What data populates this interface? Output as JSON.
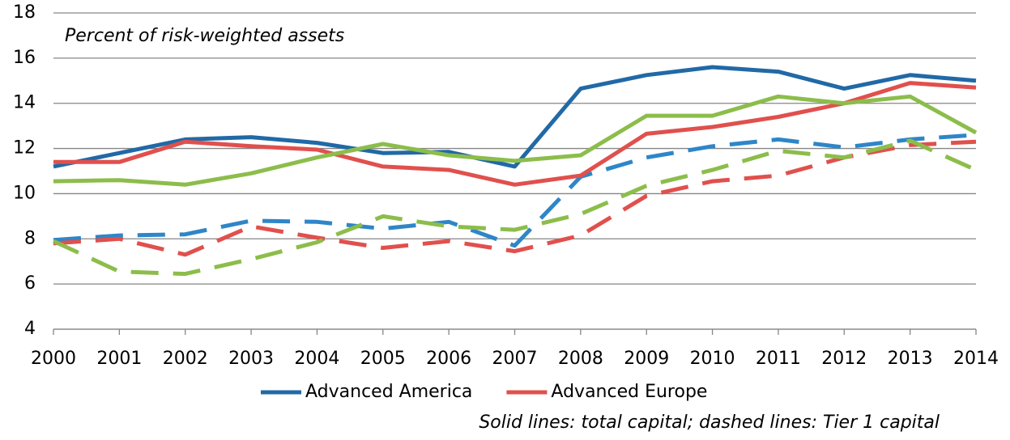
{
  "chart_data": {
    "type": "line",
    "x": [
      2000,
      2001,
      2002,
      2003,
      2004,
      2005,
      2006,
      2007,
      2008,
      2009,
      2010,
      2011,
      2012,
      2013,
      2014
    ],
    "xlim": [
      2000,
      2014
    ],
    "xticks": [
      2000,
      2001,
      2002,
      2003,
      2004,
      2005,
      2006,
      2007,
      2008,
      2009,
      2010,
      2011,
      2012,
      2013,
      2014
    ],
    "ylim": [
      4,
      18
    ],
    "yticks": [
      4,
      6,
      8,
      10,
      12,
      14,
      16,
      18
    ],
    "grid": true,
    "legend": "bottom",
    "annotations": [
      "Percent of risk-weighted assets",
      "Solid lines: total capital; dashed lines: Tier 1 capital"
    ],
    "series": [
      {
        "name": "Advanced America",
        "color": "#2169a6",
        "dashed": false,
        "values": [
          11.2,
          11.8,
          12.4,
          12.5,
          12.25,
          11.8,
          11.85,
          11.2,
          14.65,
          15.25,
          15.6,
          15.4,
          14.65,
          15.25,
          15.0
        ]
      },
      {
        "name": "Advanced Europe",
        "color": "#e0504d",
        "dashed": false,
        "values": [
          11.4,
          11.4,
          12.3,
          12.1,
          11.95,
          11.2,
          11.05,
          10.4,
          10.8,
          12.65,
          12.95,
          13.4,
          14.0,
          14.9,
          14.7
        ]
      },
      {
        "color": "#8cbd4b",
        "dashed": false,
        "values": [
          10.55,
          10.6,
          10.4,
          10.9,
          11.6,
          12.2,
          11.7,
          11.45,
          11.7,
          13.45,
          13.45,
          14.3,
          14.0,
          14.3,
          12.7
        ]
      },
      {
        "color": "#2e86c8",
        "dashed": true,
        "values": [
          7.95,
          8.15,
          8.2,
          8.8,
          8.75,
          8.45,
          8.75,
          7.7,
          10.75,
          11.6,
          12.1,
          12.4,
          12.05,
          12.4,
          12.6
        ]
      },
      {
        "color": "#e0504d",
        "dashed": true,
        "values": [
          7.8,
          8.0,
          7.3,
          8.55,
          8.05,
          7.6,
          7.9,
          7.45,
          8.15,
          9.9,
          10.55,
          10.8,
          11.6,
          12.15,
          12.3
        ]
      },
      {
        "color": "#8cbd4b",
        "dashed": true,
        "values": [
          7.9,
          6.55,
          6.45,
          7.1,
          7.85,
          9.0,
          8.55,
          8.4,
          9.1,
          10.35,
          11.05,
          11.9,
          11.6,
          12.35,
          11.05
        ]
      }
    ]
  }
}
